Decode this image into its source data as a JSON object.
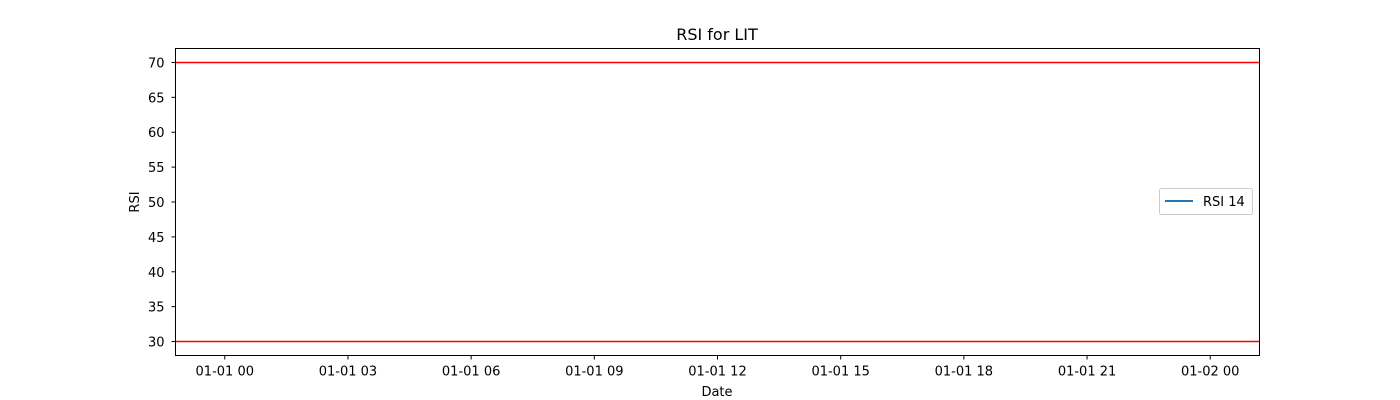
{
  "chart_data": {
    "type": "line",
    "title": "RSI for LIT",
    "xlabel": "Date",
    "ylabel": "RSI",
    "x_ticks": [
      "01-01 00",
      "01-01 03",
      "01-01 06",
      "01-01 09",
      "01-01 12",
      "01-01 15",
      "01-01 18",
      "01-01 21",
      "01-02 00"
    ],
    "x_tick_hours": [
      0,
      3,
      6,
      9,
      12,
      15,
      18,
      21,
      24
    ],
    "xlim_hours": [
      -1.2,
      25.2
    ],
    "y_ticks": [
      30,
      35,
      40,
      45,
      50,
      55,
      60,
      65,
      70
    ],
    "ylim": [
      28,
      72
    ],
    "series": [
      {
        "name": "RSI 14",
        "values": [],
        "color": "#1f77b4"
      }
    ],
    "reference_lines": [
      {
        "y": 70,
        "color": "#ff0000"
      },
      {
        "y": 30,
        "color": "#ff0000"
      }
    ],
    "legend_position": "center-right",
    "grid": false
  }
}
